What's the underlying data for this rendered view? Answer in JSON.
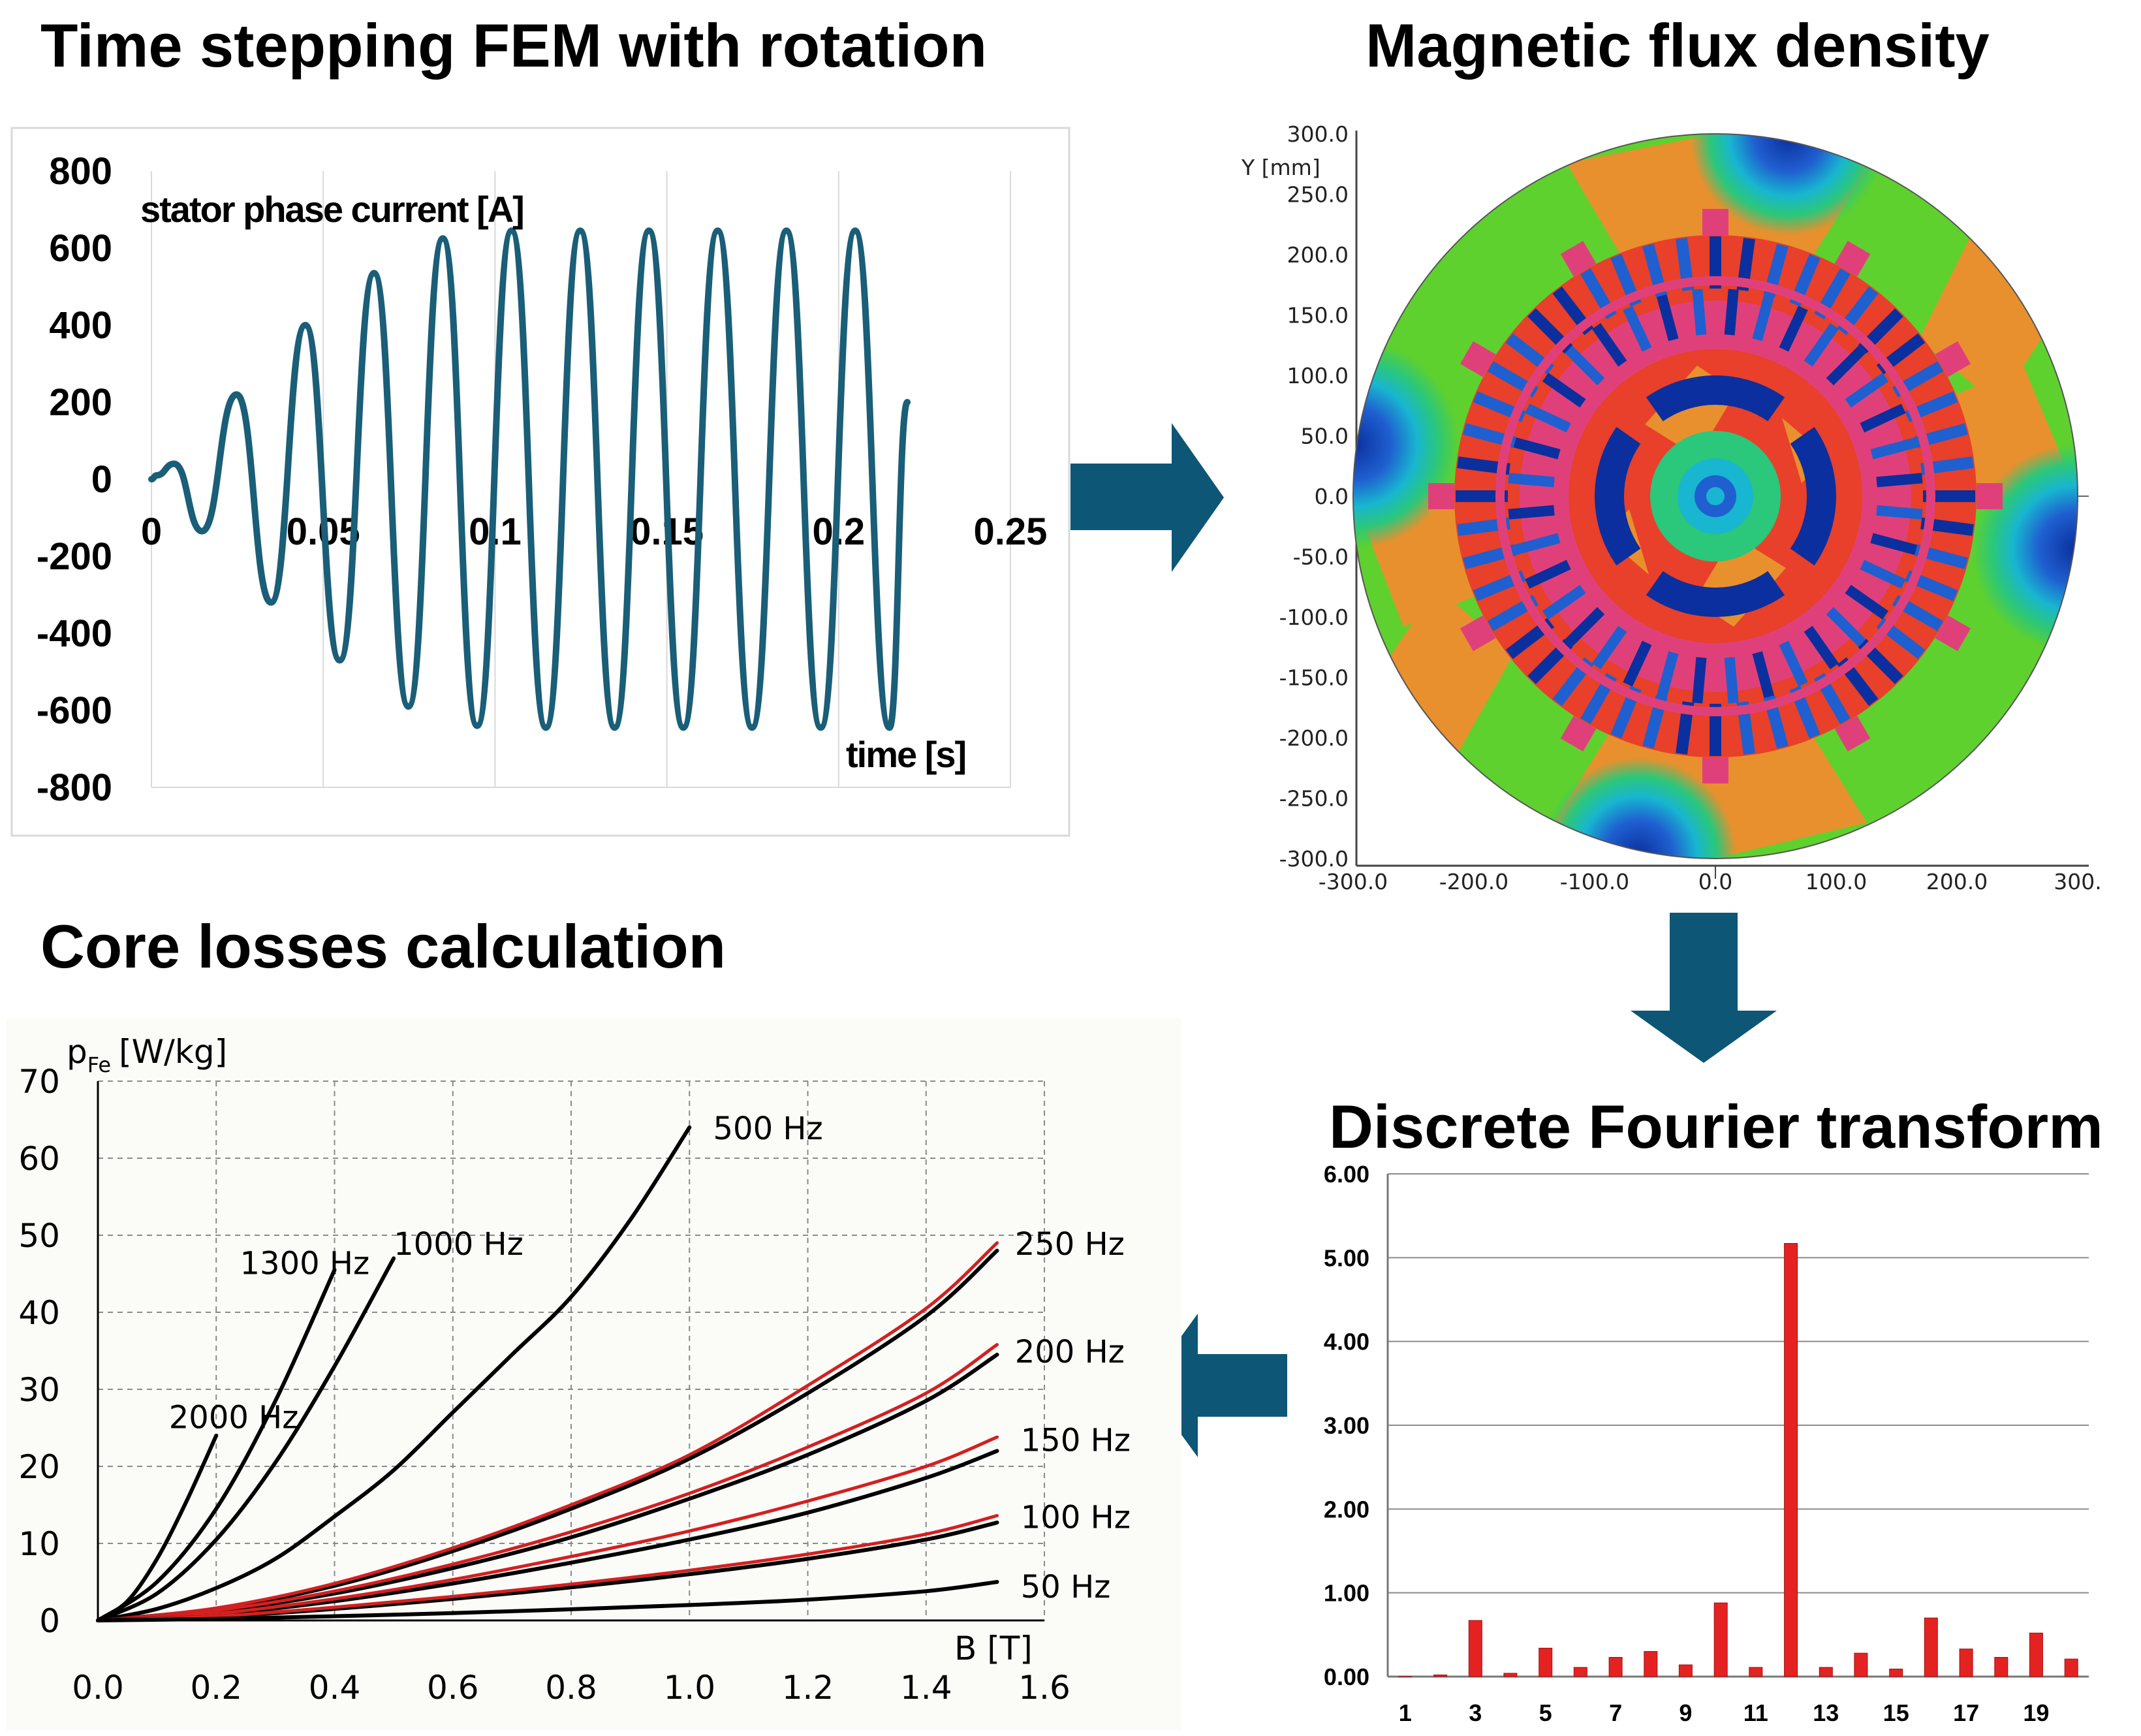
{
  "titles": {
    "current": "Time stepping FEM with rotation",
    "flux": "Magnetic flux density",
    "losses": "Core losses calculation",
    "dft": "Discrete Fourier transform"
  },
  "colors": {
    "current_line": "#1a5e78",
    "arrow": "#0d5676",
    "loss_black": "#000000",
    "loss_red": "#d32020",
    "dft_bar": "#e52222"
  },
  "chart_data": [
    {
      "id": "current",
      "type": "line",
      "title": "Time stepping FEM with rotation",
      "ylabel": "stator phase current [A]",
      "xlabel": "time [s]",
      "xlim": [
        0,
        0.25
      ],
      "ylim": [
        -800,
        800
      ],
      "xticks": [
        "0",
        "0.05",
        "0.1",
        "0.15",
        "0.2",
        "0.25"
      ],
      "yticks": [
        "800",
        "600",
        "400",
        "200",
        "0",
        "-200",
        "-400",
        "-600",
        "-800"
      ],
      "series": [
        {
          "name": "stator phase current",
          "frequency_hz": 50,
          "x": [
            0,
            0.0015,
            0.0066,
            0.0147,
            0.0248,
            0.0348,
            0.0448,
            0.0548,
            0.0648,
            0.0748,
            0.0848,
            0.0948,
            0.1048,
            0.1148,
            0.1248,
            0.1348,
            0.1448,
            0.1548,
            0.1648,
            0.1748,
            0.1848,
            0.1948,
            0.2048,
            0.2148,
            0.22
          ],
          "y": [
            0,
            10,
            40,
            -135,
            220,
            -320,
            400,
            -470,
            535,
            -590,
            625,
            -640,
            645,
            -645,
            645,
            -645,
            645,
            -645,
            645,
            -645,
            645,
            -645,
            645,
            -645,
            200
          ]
        }
      ]
    },
    {
      "id": "flux",
      "type": "heatmap",
      "title": "Magnetic flux density",
      "ylabel": "Y [mm]",
      "xlim": [
        -300,
        300
      ],
      "ylim": [
        -300,
        300
      ],
      "xticks": [
        "-300.0",
        "-200.0",
        "-100.0",
        "0.0",
        "100.0",
        "200.0",
        "300."
      ],
      "yticks": [
        "300.0",
        "250.0",
        "200.0",
        "150.0",
        "100.0",
        "50.0",
        "0.0",
        "-50.0",
        "-100.0",
        "-150.0",
        "-200.0",
        "-250.0",
        "-300.0"
      ],
      "palette": [
        "#0b2f9e",
        "#1f5fd0",
        "#18b6d0",
        "#2bc77a",
        "#5fd12e",
        "#8fd62e",
        "#e8902e",
        "#e8402a",
        "#e0407a"
      ]
    },
    {
      "id": "losses",
      "type": "line",
      "title": "Core losses calculation",
      "ylabel": "p_Fe [W/kg]",
      "ylabel_main": "p",
      "ylabel_sub": "Fe",
      "ylabel_unit": "[W/kg]",
      "xlabel": "B [T]",
      "xlim": [
        0,
        1.6
      ],
      "ylim": [
        0,
        70
      ],
      "xticks": [
        "0.0",
        "0.2",
        "0.4",
        "0.6",
        "0.8",
        "1.0",
        "1.2",
        "1.4",
        "1.6"
      ],
      "yticks": [
        "70",
        "60",
        "50",
        "40",
        "30",
        "20",
        "10",
        "0"
      ],
      "series": [
        {
          "name": "500 Hz",
          "color": "black",
          "x": [
            0,
            0.1,
            0.2,
            0.3,
            0.4,
            0.5,
            0.6,
            0.7,
            0.8,
            0.9,
            1.0
          ],
          "y": [
            0,
            1.5,
            4.2,
            8.0,
            13.5,
            19.5,
            27.0,
            34.5,
            42.0,
            52.0,
            64.0
          ]
        },
        {
          "name": "1300 Hz",
          "color": "black",
          "x": [
            0,
            0.1,
            0.2,
            0.3,
            0.4
          ],
          "y": [
            0,
            5.0,
            14.5,
            28.5,
            45.5
          ]
        },
        {
          "name": "1000 Hz",
          "color": "black",
          "x": [
            0,
            0.1,
            0.2,
            0.3,
            0.4,
            0.5
          ],
          "y": [
            0,
            3.5,
            10.5,
            20.5,
            33.0,
            47.0
          ]
        },
        {
          "name": "2000 Hz",
          "color": "black",
          "x": [
            0,
            0.05,
            0.1,
            0.15,
            0.2
          ],
          "y": [
            0,
            2.5,
            8.0,
            15.5,
            24.0
          ]
        },
        {
          "name": "250 Hz",
          "color": "black",
          "x": [
            0,
            0.2,
            0.4,
            0.6,
            0.8,
            1.0,
            1.2,
            1.4,
            1.52
          ],
          "y": [
            0,
            1.5,
            4.5,
            9.0,
            14.5,
            21.0,
            29.5,
            39.5,
            48.0
          ]
        },
        {
          "name": "250 Hz (red)",
          "color": "red",
          "x": [
            0,
            0.2,
            0.4,
            0.6,
            0.8,
            1.0,
            1.2,
            1.4,
            1.52
          ],
          "y": [
            0,
            1.6,
            4.8,
            9.4,
            15.0,
            21.5,
            30.5,
            40.5,
            49.0
          ]
        },
        {
          "name": "200 Hz",
          "color": "black",
          "x": [
            0,
            0.2,
            0.4,
            0.6,
            0.8,
            1.0,
            1.2,
            1.4,
            1.52
          ],
          "y": [
            0,
            1.2,
            3.5,
            6.8,
            10.8,
            15.8,
            21.5,
            28.5,
            34.5
          ]
        },
        {
          "name": "200 Hz (red)",
          "color": "red",
          "x": [
            0,
            0.2,
            0.4,
            0.6,
            0.8,
            1.0,
            1.2,
            1.4,
            1.52
          ],
          "y": [
            0,
            1.3,
            3.8,
            7.3,
            11.5,
            16.5,
            22.5,
            29.5,
            35.8
          ]
        },
        {
          "name": "150 Hz",
          "color": "black",
          "x": [
            0,
            0.2,
            0.4,
            0.6,
            0.8,
            1.0,
            1.2,
            1.4,
            1.52
          ],
          "y": [
            0,
            0.8,
            2.5,
            4.8,
            7.5,
            10.5,
            14.0,
            18.5,
            22.0
          ]
        },
        {
          "name": "150 Hz (red)",
          "color": "red",
          "x": [
            0,
            0.2,
            0.4,
            0.6,
            0.8,
            1.0,
            1.2,
            1.4,
            1.52
          ],
          "y": [
            0,
            0.9,
            2.8,
            5.3,
            8.3,
            11.6,
            15.5,
            20.0,
            23.8
          ]
        },
        {
          "name": "100 Hz",
          "color": "black",
          "x": [
            0,
            0.2,
            0.4,
            0.6,
            0.8,
            1.0,
            1.2,
            1.4,
            1.52
          ],
          "y": [
            0,
            0.5,
            1.5,
            2.8,
            4.3,
            6.0,
            8.0,
            10.5,
            12.7
          ]
        },
        {
          "name": "100 Hz (red)",
          "color": "red",
          "x": [
            0,
            0.2,
            0.4,
            0.6,
            0.8,
            1.0,
            1.2,
            1.4,
            1.52
          ],
          "y": [
            0,
            0.55,
            1.7,
            3.1,
            4.7,
            6.5,
            8.6,
            11.2,
            13.6
          ]
        },
        {
          "name": "50 Hz",
          "color": "black",
          "x": [
            0,
            0.2,
            0.4,
            0.6,
            0.8,
            1.0,
            1.2,
            1.4,
            1.52
          ],
          "y": [
            0,
            0.2,
            0.55,
            0.95,
            1.45,
            2.0,
            2.7,
            3.8,
            5.0
          ]
        }
      ],
      "annotations": [
        {
          "text": "500 Hz",
          "x": 1.04,
          "y": 64
        },
        {
          "text": "1300 Hz",
          "x": 0.24,
          "y": 46.5
        },
        {
          "text": "1000 Hz",
          "x": 0.5,
          "y": 49
        },
        {
          "text": "2000 Hz",
          "x": 0.12,
          "y": 26.5
        },
        {
          "text": "250 Hz",
          "x": 1.55,
          "y": 49
        },
        {
          "text": "200 Hz",
          "x": 1.55,
          "y": 35
        },
        {
          "text": "150 Hz",
          "x": 1.56,
          "y": 23.5
        },
        {
          "text": "100 Hz",
          "x": 1.56,
          "y": 13.5
        },
        {
          "text": "50 Hz",
          "x": 1.56,
          "y": 4.5
        }
      ]
    },
    {
      "id": "dft",
      "type": "bar",
      "title": "Discrete Fourier transform",
      "categories": [
        "1",
        "2",
        "3",
        "4",
        "5",
        "6",
        "7",
        "8",
        "9",
        "10",
        "11",
        "12",
        "13",
        "14",
        "15",
        "16",
        "17",
        "18",
        "19",
        "20"
      ],
      "xtick_labels": [
        "1",
        "",
        "3",
        "",
        "5",
        "",
        "7",
        "",
        "9",
        "",
        "11",
        "",
        "13",
        "",
        "15",
        "",
        "17",
        "",
        "19",
        ""
      ],
      "values": [
        0.0,
        0.02,
        0.67,
        0.04,
        0.34,
        0.11,
        0.23,
        0.3,
        0.14,
        0.88,
        0.11,
        5.17,
        0.11,
        0.28,
        0.09,
        0.7,
        0.33,
        0.23,
        0.52,
        0.21
      ],
      "ylim": [
        0,
        6
      ],
      "yticks": [
        "6.00",
        "5.00",
        "4.00",
        "3.00",
        "2.00",
        "1.00",
        "0.00"
      ]
    }
  ]
}
